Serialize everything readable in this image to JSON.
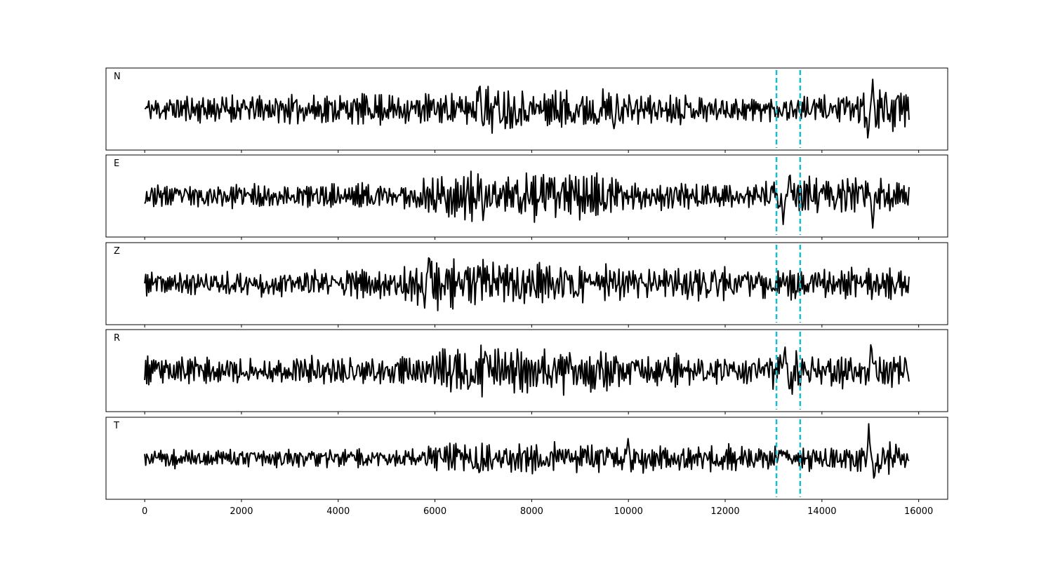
{
  "chart_data": {
    "type": "line",
    "x_ticks": [
      0,
      2000,
      4000,
      6000,
      8000,
      10000,
      12000,
      14000,
      16000
    ],
    "xlim": [
      -800,
      16600
    ],
    "sample_count": 15800,
    "markers": [
      13060,
      13550
    ],
    "marker_color": "#17becf",
    "trace_color": "#000000",
    "panels": [
      {
        "label": "N",
        "seed": 11,
        "ylim": [
          -1.2,
          1.2
        ],
        "envelope": [
          [
            0,
            0.45
          ],
          [
            6800,
            0.5
          ],
          [
            7000,
            0.9
          ],
          [
            8000,
            0.55
          ],
          [
            9500,
            0.7
          ],
          [
            10000,
            0.5
          ],
          [
            13000,
            0.4
          ],
          [
            14000,
            0.45
          ],
          [
            14700,
            0.5
          ],
          [
            15000,
            0.9
          ],
          [
            15800,
            0.6
          ]
        ],
        "events": [
          [
            6920,
            0.95
          ],
          [
            9700,
            -0.75
          ],
          [
            14950,
            -1.0
          ],
          [
            15050,
            0.85
          ]
        ]
      },
      {
        "label": "E",
        "seed": 23,
        "ylim": [
          -1.2,
          1.2
        ],
        "envelope": [
          [
            0,
            0.35
          ],
          [
            5500,
            0.4
          ],
          [
            6000,
            0.75
          ],
          [
            7000,
            0.8
          ],
          [
            9000,
            0.7
          ],
          [
            10000,
            0.45
          ],
          [
            12500,
            0.35
          ],
          [
            13100,
            0.6
          ],
          [
            14500,
            0.55
          ],
          [
            15800,
            0.45
          ]
        ],
        "events": [
          [
            7000,
            -0.75
          ],
          [
            13200,
            -0.85
          ],
          [
            13330,
            0.85
          ],
          [
            15050,
            -1.0
          ]
        ]
      },
      {
        "label": "Z",
        "seed": 37,
        "ylim": [
          -1.2,
          1.2
        ],
        "envelope": [
          [
            0,
            0.35
          ],
          [
            5000,
            0.45
          ],
          [
            5800,
            0.7
          ],
          [
            6500,
            0.8
          ],
          [
            8000,
            0.65
          ],
          [
            10000,
            0.55
          ],
          [
            13000,
            0.5
          ],
          [
            15800,
            0.45
          ]
        ],
        "events": [
          [
            5880,
            1.05
          ],
          [
            5780,
            -0.75
          ],
          [
            7760,
            -0.6
          ],
          [
            11830,
            -0.65
          ],
          [
            11780,
            0.5
          ]
        ]
      },
      {
        "label": "R",
        "seed": 53,
        "ylim": [
          -1.2,
          1.2
        ],
        "envelope": [
          [
            0,
            0.4
          ],
          [
            5500,
            0.45
          ],
          [
            6500,
            0.8
          ],
          [
            9000,
            0.75
          ],
          [
            10000,
            0.5
          ],
          [
            12500,
            0.4
          ],
          [
            13200,
            0.7
          ],
          [
            14500,
            0.5
          ],
          [
            15800,
            0.55
          ]
        ],
        "events": [
          [
            6700,
            -0.75
          ],
          [
            7050,
            0.75
          ],
          [
            13230,
            0.85
          ],
          [
            13330,
            -0.7
          ],
          [
            15020,
            1.0
          ],
          [
            15800,
            -0.3
          ]
        ]
      },
      {
        "label": "T",
        "seed": 71,
        "ylim": [
          -1.2,
          1.2
        ],
        "envelope": [
          [
            0,
            0.3
          ],
          [
            5500,
            0.3
          ],
          [
            6000,
            0.45
          ],
          [
            7000,
            0.5
          ],
          [
            9000,
            0.45
          ],
          [
            10000,
            0.45
          ],
          [
            12500,
            0.4
          ],
          [
            14800,
            0.4
          ],
          [
            15000,
            0.7
          ],
          [
            15800,
            0.35
          ]
        ],
        "events": [
          [
            6920,
            0.55
          ],
          [
            6920,
            -0.7
          ],
          [
            9990,
            0.65
          ],
          [
            14970,
            1.1
          ],
          [
            15080,
            -0.75
          ]
        ]
      }
    ]
  }
}
